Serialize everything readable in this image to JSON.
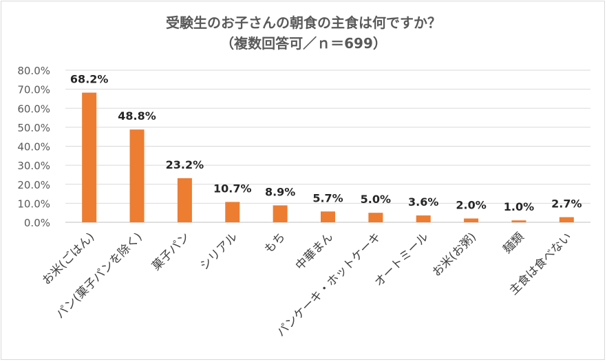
{
  "chart_data": {
    "type": "bar",
    "title": "受験生のお子さんの朝食の主食は何ですか？",
    "subtitle": "（複数回答可／ｎ＝699）",
    "categories": [
      "お米(ごはん)",
      "パン(菓子パンを除く)",
      "菓子パン",
      "シリアル",
      "もち",
      "中華まん",
      "パンケーキ・ホットケーキ",
      "オートミール",
      "お米(お粥)",
      "麺類",
      "主食は食べない"
    ],
    "values": [
      68.2,
      48.8,
      23.2,
      10.7,
      8.9,
      5.7,
      5.0,
      3.6,
      2.0,
      1.0,
      2.7
    ],
    "data_labels": [
      "68.2%",
      "48.8%",
      "23.2%",
      "10.7%",
      "8.9%",
      "5.7%",
      "5.0%",
      "3.6%",
      "2.0%",
      "1.0%",
      "2.7%"
    ],
    "y_ticks": [
      "0.0%",
      "10.0%",
      "20.0%",
      "30.0%",
      "40.0%",
      "50.0%",
      "60.0%",
      "70.0%",
      "80.0%"
    ],
    "ylim": [
      0,
      80
    ],
    "xlabel": "",
    "ylabel": "",
    "grid": true,
    "legend": "none",
    "bar_color": "#ed7d31"
  }
}
